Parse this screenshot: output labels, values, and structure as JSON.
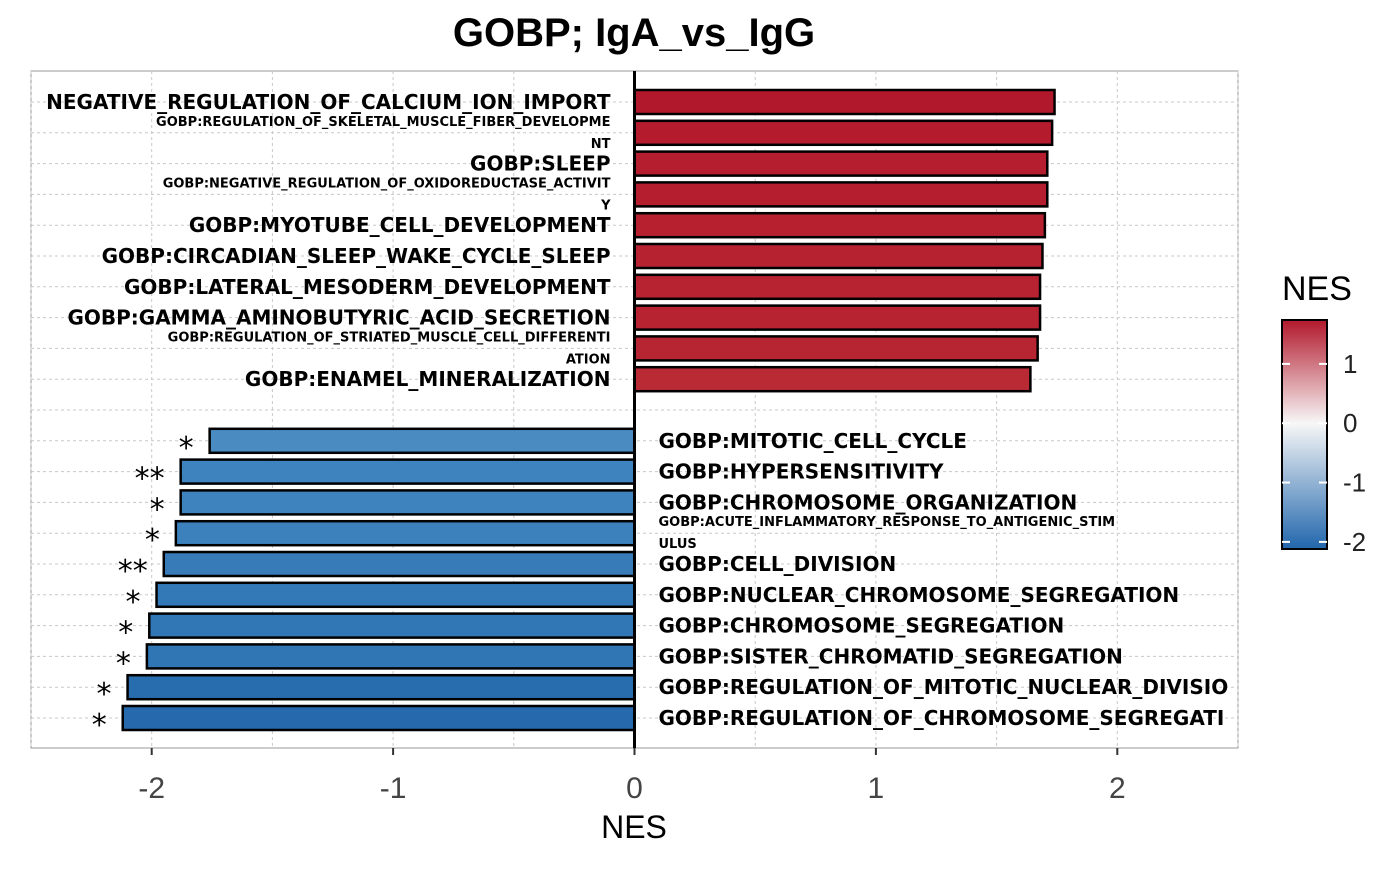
{
  "chart_data": {
    "type": "bar",
    "orientation": "horizontal",
    "title": "GOBP; IgA_vs_IgG",
    "xlabel": "NES",
    "ylabel": "",
    "xlim": [
      -2.5,
      2.5
    ],
    "x_ticks": [
      -2,
      -1,
      0,
      1,
      2
    ],
    "x_tick_labels": [
      "-2",
      "-1",
      "0",
      "1",
      "2"
    ],
    "grid": true,
    "legend": {
      "title": "NES",
      "position": "right",
      "type": "colorbar",
      "range": [
        -2.12,
        1.74
      ],
      "ticks": [
        1,
        0,
        -1,
        -2
      ],
      "tick_labels": [
        "1",
        "0",
        "-1",
        "-2"
      ],
      "low_color": "#2166ac",
      "mid_color": "#f7f7f7",
      "high_color": "#b2182b"
    },
    "groups": [
      {
        "name": "up",
        "bars": [
          {
            "label": "NEGATIVE_REGULATION_OF_CALCIUM_ION_IMPORT",
            "value": 1.74,
            "sig": "",
            "color": "#b2182b"
          },
          {
            "label": "GOBP:REGULATION_OF_SKELETAL_MUSCLE_FIBER_DEVELOPME\nNT",
            "value": 1.73,
            "sig": "",
            "color": "#b41b2c"
          },
          {
            "label": "GOBP:SLEEP",
            "value": 1.71,
            "sig": "",
            "color": "#b51e2e"
          },
          {
            "label": "GOBP:NEGATIVE_REGULATION_OF_OXIDOREDUCTASE_ACTIVIT\nY",
            "value": 1.71,
            "sig": "",
            "color": "#b51e2e"
          },
          {
            "label": "GOBP:MYOTUBE_CELL_DEVELOPMENT",
            "value": 1.7,
            "sig": "",
            "color": "#b6202f"
          },
          {
            "label": "GOBP:CIRCADIAN_SLEEP_WAKE_CYCLE_SLEEP",
            "value": 1.69,
            "sig": "",
            "color": "#b72230"
          },
          {
            "label": "GOBP:LATERAL_MESODERM_DEVELOPMENT",
            "value": 1.68,
            "sig": "",
            "color": "#b72331"
          },
          {
            "label": "GOBP:GAMMA_AMINOBUTYRIC_ACID_SECRETION",
            "value": 1.68,
            "sig": "",
            "color": "#b72331"
          },
          {
            "label": "GOBP:REGULATION_OF_STRIATED_MUSCLE_CELL_DIFFERENTI\nATION",
            "value": 1.67,
            "sig": "",
            "color": "#b82532"
          },
          {
            "label": "GOBP:ENAMEL_MINERALIZATION",
            "value": 1.64,
            "sig": "",
            "color": "#ba2a35"
          }
        ]
      },
      {
        "name": "down",
        "bars": [
          {
            "label": "GOBP:MITOTIC_CELL_CYCLE",
            "value": -1.76,
            "sig": "*",
            "color": "#4a8cc2"
          },
          {
            "label": "GOBP:HYPERSENSITIVITY",
            "value": -1.88,
            "sig": "**",
            "color": "#3e83bd"
          },
          {
            "label": "GOBP:CHROMOSOME_ORGANIZATION",
            "value": -1.88,
            "sig": "*",
            "color": "#3e83bd"
          },
          {
            "label": "GOBP:ACUTE_INFLAMMATORY_RESPONSE_TO_ANTIGENIC_STIM\nULUS",
            "value": -1.9,
            "sig": "*",
            "color": "#3c81bc"
          },
          {
            "label": "GOBP:CELL_DIVISION",
            "value": -1.95,
            "sig": "**",
            "color": "#377cb9"
          },
          {
            "label": "GOBP:NUCLEAR_CHROMOSOME_SEGREGATION",
            "value": -1.98,
            "sig": "*",
            "color": "#3479b7"
          },
          {
            "label": "GOBP:CHROMOSOME_SEGREGATION",
            "value": -2.01,
            "sig": "*",
            "color": "#3176b5"
          },
          {
            "label": "GOBP:SISTER_CHROMATID_SEGREGATION",
            "value": -2.02,
            "sig": "*",
            "color": "#3075b4"
          },
          {
            "label": "GOBP:REGULATION_OF_MITOTIC_NUCLEAR_DIVISIO",
            "value": -2.1,
            "sig": "*",
            "color": "#286dae"
          },
          {
            "label": "GOBP:REGULATION_OF_CHROMOSOME_SEGREGATI",
            "value": -2.12,
            "sig": "*",
            "color": "#2669ad"
          }
        ]
      }
    ]
  }
}
